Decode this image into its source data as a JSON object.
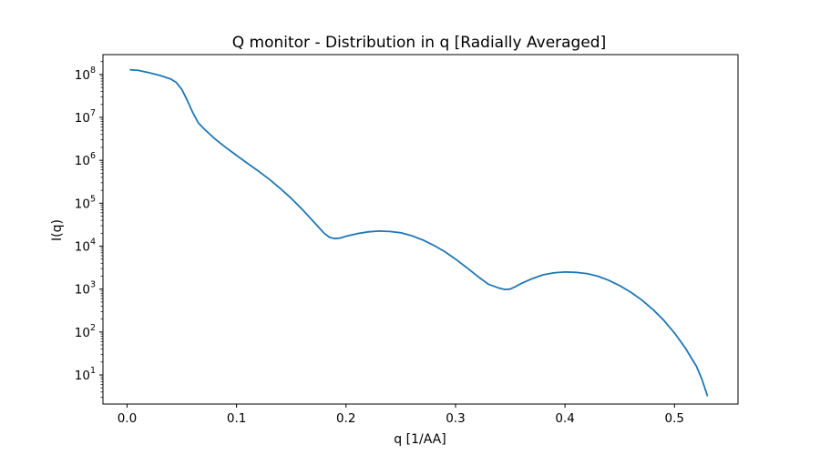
{
  "chart_data": {
    "type": "line",
    "title": "Q monitor - Distribution in q [Radially Averaged]",
    "xlabel": "q [1/AA]",
    "ylabel": "I(q)",
    "xlim": [
      -0.022,
      0.558
    ],
    "ylim": [
      2.1,
      290000000
    ],
    "yscale": "log",
    "grid": false,
    "x_ticks": [
      "0.0",
      "0.1",
      "0.2",
      "0.3",
      "0.4",
      "0.5"
    ],
    "y_ticks": [
      {
        "base": "10",
        "exp": "1"
      },
      {
        "base": "10",
        "exp": "2"
      },
      {
        "base": "10",
        "exp": "3"
      },
      {
        "base": "10",
        "exp": "4"
      },
      {
        "base": "10",
        "exp": "5"
      },
      {
        "base": "10",
        "exp": "6"
      },
      {
        "base": "10",
        "exp": "7"
      },
      {
        "base": "10",
        "exp": "8"
      }
    ],
    "series": [
      {
        "color": "#1f77b4",
        "x": [
          0.003,
          0.01,
          0.02,
          0.03,
          0.04,
          0.045,
          0.05,
          0.055,
          0.06,
          0.065,
          0.07,
          0.08,
          0.09,
          0.1,
          0.11,
          0.12,
          0.13,
          0.14,
          0.15,
          0.16,
          0.17,
          0.18,
          0.185,
          0.19,
          0.195,
          0.2,
          0.21,
          0.22,
          0.23,
          0.24,
          0.25,
          0.26,
          0.27,
          0.28,
          0.29,
          0.3,
          0.31,
          0.32,
          0.33,
          0.34,
          0.345,
          0.35,
          0.355,
          0.36,
          0.37,
          0.38,
          0.39,
          0.4,
          0.41,
          0.42,
          0.43,
          0.44,
          0.45,
          0.46,
          0.47,
          0.48,
          0.49,
          0.5,
          0.51,
          0.52,
          0.525,
          0.53
        ],
        "y": [
          128000000,
          125000000,
          110000000,
          95000000,
          78000000,
          65000000,
          45000000,
          25000000,
          13000000,
          7500000,
          5500000,
          3200000,
          2000000,
          1300000,
          850000,
          560000,
          360000,
          220000,
          130000,
          72000,
          38000,
          20000,
          16000,
          15000,
          15500,
          17000,
          19500,
          21500,
          22500,
          22000,
          20500,
          17500,
          14000,
          10500,
          7500,
          5000,
          3200,
          2000,
          1300,
          1050,
          980,
          1000,
          1150,
          1350,
          1750,
          2150,
          2400,
          2500,
          2450,
          2300,
          2000,
          1600,
          1200,
          850,
          560,
          340,
          190,
          95,
          42,
          16,
          8,
          3.3
        ]
      }
    ]
  }
}
